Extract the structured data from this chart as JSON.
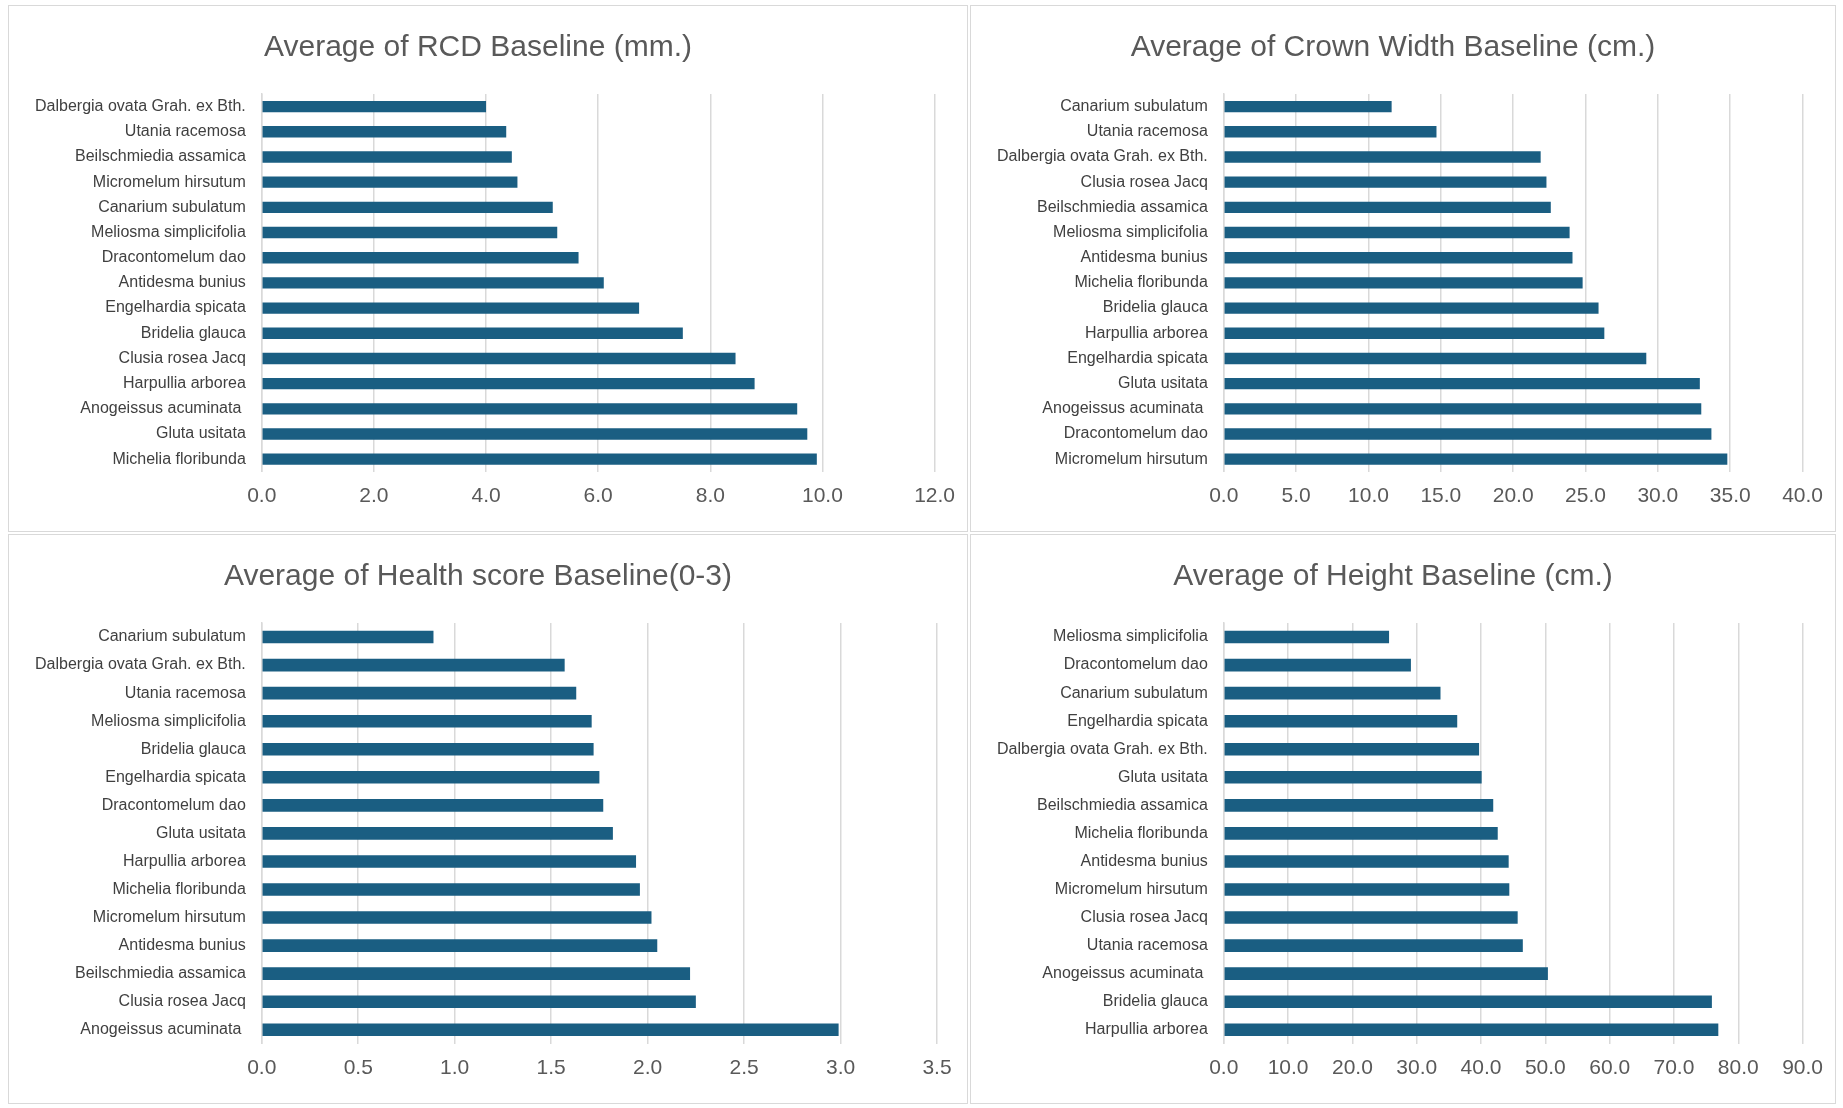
{
  "chart_data": [
    {
      "type": "bar",
      "orientation": "horizontal",
      "title": "Average of RCD Baseline (mm.)",
      "color": "#1a5e82",
      "grid": "x",
      "categories": [
        "Dalbergia ovata Grah. ex Bth.",
        "Utania racemosa",
        "Beilschmiedia assamica",
        "Micromelum hirsutum",
        "Canarium subulatum",
        "Meliosma simplicifolia",
        "Dracontomelum dao",
        "Antidesma bunius",
        "Engelhardia spicata",
        "Bridelia glauca",
        "Clusia rosea Jacq",
        "Harpullia arborea",
        "Anogeissus acuminata ",
        "Gluta usitata",
        "Michelia floribunda"
      ],
      "values": [
        4.0,
        4.36,
        4.46,
        4.56,
        5.19,
        5.27,
        5.65,
        6.1,
        6.73,
        7.51,
        8.45,
        8.79,
        9.55,
        9.73,
        9.9
      ],
      "xlim": [
        0,
        12
      ],
      "xticks": [
        {
          "value": 0,
          "label": "0.0"
        },
        {
          "value": 2,
          "label": "2.0"
        },
        {
          "value": 4,
          "label": "4.0"
        },
        {
          "value": 6,
          "label": "6.0"
        },
        {
          "value": 8,
          "label": "8.0"
        },
        {
          "value": 10,
          "label": "10.0"
        },
        {
          "value": 12,
          "label": "12.0"
        }
      ]
    },
    {
      "type": "bar",
      "orientation": "horizontal",
      "title": "Average of Crown Width Baseline (cm.)",
      "color": "#1a5e82",
      "grid": "x",
      "categories": [
        "Canarium subulatum",
        "Utania racemosa",
        "Dalbergia ovata Grah. ex Bth.",
        "Clusia rosea Jacq",
        "Beilschmiedia assamica",
        "Meliosma simplicifolia",
        "Antidesma bunius",
        "Michelia floribunda",
        "Bridelia glauca",
        "Harpullia arborea",
        "Engelhardia spicata",
        "Gluta usitata",
        "Anogeissus acuminata ",
        "Dracontomelum dao",
        "Micromelum hirsutum"
      ],
      "values": [
        11.6,
        14.7,
        21.9,
        22.3,
        22.6,
        23.9,
        24.1,
        24.8,
        25.9,
        26.3,
        29.2,
        32.9,
        33.0,
        33.7,
        34.8
      ],
      "xlim": [
        0,
        40
      ],
      "xticks": [
        {
          "value": 0,
          "label": "0.0"
        },
        {
          "value": 5,
          "label": "5.0"
        },
        {
          "value": 10,
          "label": "10.0"
        },
        {
          "value": 15,
          "label": "15.0"
        },
        {
          "value": 20,
          "label": "20.0"
        },
        {
          "value": 25,
          "label": "25.0"
        },
        {
          "value": 30,
          "label": "30.0"
        },
        {
          "value": 35,
          "label": "35.0"
        },
        {
          "value": 40,
          "label": "40.0"
        }
      ]
    },
    {
      "type": "bar",
      "orientation": "horizontal",
      "title": "Average of Health score Baseline(0-3)",
      "color": "#1a5e82",
      "grid": "x",
      "categories": [
        "Canarium subulatum",
        "Dalbergia ovata Grah. ex Bth.",
        "Utania racemosa",
        "Meliosma simplicifolia",
        "Bridelia glauca",
        "Engelhardia spicata",
        "Dracontomelum dao",
        "Gluta usitata",
        "Harpullia arborea",
        "Michelia floribunda",
        "Micromelum hirsutum",
        "Antidesma bunius",
        "Beilschmiedia assamica",
        "Clusia rosea Jacq",
        "Anogeissus acuminata "
      ],
      "values": [
        0.89,
        1.57,
        1.63,
        1.71,
        1.72,
        1.75,
        1.77,
        1.82,
        1.94,
        1.96,
        2.02,
        2.05,
        2.22,
        2.25,
        2.99
      ],
      "xlim": [
        0,
        3.5
      ],
      "xticks": [
        {
          "value": 0,
          "label": "0.0"
        },
        {
          "value": 0.5,
          "label": "0.5"
        },
        {
          "value": 1,
          "label": "1.0"
        },
        {
          "value": 1.5,
          "label": "1.5"
        },
        {
          "value": 2,
          "label": "2.0"
        },
        {
          "value": 2.5,
          "label": "2.5"
        },
        {
          "value": 3,
          "label": "3.0"
        },
        {
          "value": 3.5,
          "label": "3.5"
        }
      ]
    },
    {
      "type": "bar",
      "orientation": "horizontal",
      "title": "Average of Height Baseline (cm.)",
      "color": "#1a5e82",
      "grid": "x",
      "categories": [
        "Meliosma simplicifolia",
        "Dracontomelum dao",
        "Canarium subulatum",
        "Engelhardia spicata",
        "Dalbergia ovata Grah. ex Bth.",
        "Gluta usitata",
        "Beilschmiedia assamica",
        "Michelia floribunda",
        "Antidesma bunius",
        "Micromelum hirsutum",
        "Clusia rosea Jacq",
        "Utania racemosa",
        "Anogeissus acuminata ",
        "Bridelia glauca",
        "Harpullia arborea"
      ],
      "values": [
        25.7,
        29.1,
        33.7,
        36.3,
        39.7,
        40.1,
        41.9,
        42.6,
        44.3,
        44.4,
        45.7,
        46.5,
        50.4,
        75.9,
        76.9
      ],
      "xlim": [
        0,
        90
      ],
      "xticks": [
        {
          "value": 0,
          "label": "0.0"
        },
        {
          "value": 10,
          "label": "10.0"
        },
        {
          "value": 20,
          "label": "20.0"
        },
        {
          "value": 30,
          "label": "30.0"
        },
        {
          "value": 40,
          "label": "40.0"
        },
        {
          "value": 50,
          "label": "50.0"
        },
        {
          "value": 60,
          "label": "60.0"
        },
        {
          "value": 70,
          "label": "70.0"
        },
        {
          "value": 80,
          "label": "80.0"
        },
        {
          "value": 90,
          "label": "90.0"
        }
      ]
    }
  ]
}
